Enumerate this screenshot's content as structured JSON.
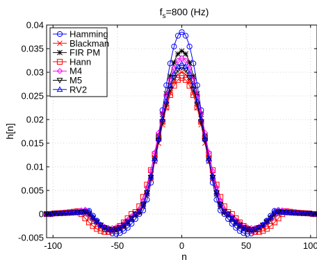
{
  "chart_data": {
    "type": "line",
    "title": {
      "f": "f",
      "sub": "s",
      "rest": "=800 (Hz)"
    },
    "xlabel": "n",
    "ylabel": "h[n]",
    "xlim": [
      -105,
      105
    ],
    "ylim": [
      -0.005,
      0.04
    ],
    "xticks": [
      -100,
      -50,
      0,
      50,
      100
    ],
    "xtick_labels": [
      "-100",
      "-50",
      "0",
      "50",
      "100"
    ],
    "yticks": [
      -0.005,
      0,
      0.005,
      0.01,
      0.015,
      0.02,
      0.025,
      0.03,
      0.035,
      0.04
    ],
    "ytick_labels": [
      "-0.005",
      "0",
      "0.005",
      "0.01",
      "0.015",
      "0.02",
      "0.025",
      "0.03",
      "0.035",
      "0.04"
    ],
    "grid": true,
    "legend_position": "top-left",
    "x_range": [
      -105,
      105
    ],
    "x_step": 3,
    "series": [
      {
        "name": "Hamming",
        "color": "#0000ff",
        "marker": "circle",
        "peak": 0.0385,
        "zero": 33,
        "min": -0.0042,
        "min_at": 40,
        "tail": 0.0006,
        "tail_at": 70
      },
      {
        "name": "Blackman",
        "color": "#ff0000",
        "marker": "x",
        "peak": 0.03,
        "zero": 36,
        "min": -0.0033,
        "min_at": 43,
        "tail": 0.0003,
        "tail_at": 75
      },
      {
        "name": "FIR PM",
        "color": "#000000",
        "marker": "star",
        "peak": 0.0345,
        "zero": 35,
        "min": -0.0035,
        "min_at": 42,
        "tail": 0.0004,
        "tail_at": 72
      },
      {
        "name": "Hann",
        "color": "#ff0000",
        "marker": "square",
        "peak": 0.0288,
        "zero": 39,
        "min": -0.0038,
        "min_at": 46,
        "tail": 0.0006,
        "tail_at": 78
      },
      {
        "name": "M4",
        "color": "#ff00ff",
        "marker": "diamond",
        "peak": 0.033,
        "zero": 37,
        "min": -0.003,
        "min_at": 46,
        "tail": 0.0009,
        "tail_at": 73
      },
      {
        "name": "M5",
        "color": "#000000",
        "marker": "triangle-down",
        "peak": 0.031,
        "zero": 36,
        "min": -0.0033,
        "min_at": 44,
        "tail": 0.0004,
        "tail_at": 72
      },
      {
        "name": "RV2",
        "color": "#0000ff",
        "marker": "triangle-up",
        "peak": 0.0318,
        "zero": 36,
        "min": -0.0034,
        "min_at": 43,
        "tail": 0.0004,
        "tail_at": 71
      }
    ]
  }
}
